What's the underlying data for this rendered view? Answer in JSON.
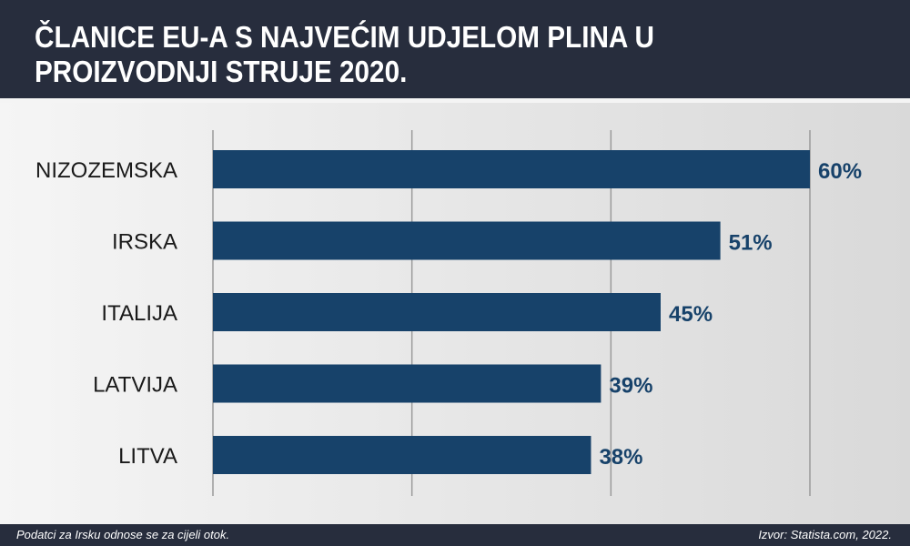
{
  "title": "ČLANICE EU-A S NAJVEĆIM UDJELOM PLINA U PROIZVODNJI STRUJE 2020.",
  "footer": {
    "note": "Podatci za Irsku odnose se za cijeli otok.",
    "source": "Izvor: Statista.com, 2022."
  },
  "colors": {
    "bar": "#17426a",
    "label": "#17426a",
    "category": "#1a1a1a",
    "grid": "#9a9a9a"
  },
  "chart_data": {
    "type": "bar",
    "orientation": "horizontal",
    "categories": [
      "NIZOZEMSKA",
      "IRSKA",
      "ITALIJA",
      "LATVIJA",
      "LITVA"
    ],
    "values": [
      60,
      51,
      45,
      39,
      38
    ],
    "value_labels": [
      "60%",
      "51%",
      "45%",
      "39%",
      "38%"
    ],
    "unit": "%",
    "xlim": [
      0,
      60
    ],
    "gridlines": [
      0,
      20,
      40,
      60
    ],
    "grid": true,
    "legend": "none"
  }
}
